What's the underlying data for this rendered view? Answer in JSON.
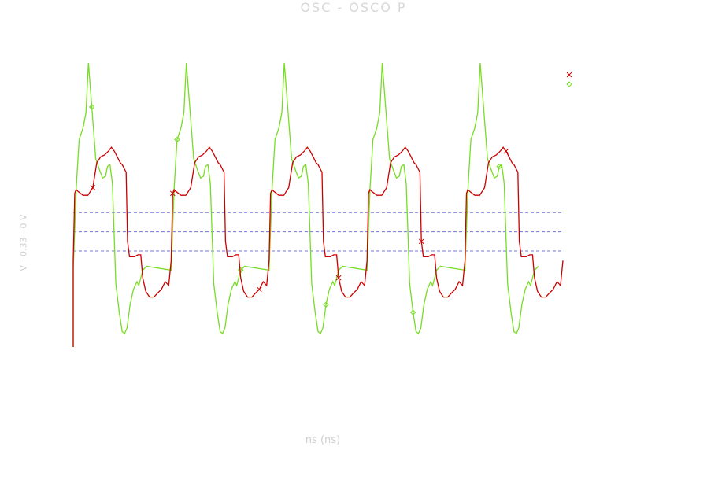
{
  "chart_data": {
    "type": "line",
    "title": "OSC - OSCO P",
    "xlabel": "ns (ns)",
    "ylabel": "V - 0.33 - 0 V",
    "grid": false,
    "legend_position": "top-right",
    "xlim": [
      0,
      100
    ],
    "ylim": [
      0,
      1
    ],
    "reference_lines": [
      0.5,
      0.6,
      0.7
    ],
    "series": [
      {
        "marker": "x",
        "color": "#cc0000",
        "period": 20,
        "x_start": 0,
        "x_end": 100,
        "start_value": 0.0,
        "pattern": [
          [
            0.0,
            0.45
          ],
          [
            0.3,
            0.8
          ],
          [
            0.6,
            0.82
          ],
          [
            1.0,
            0.81
          ],
          [
            2.0,
            0.79
          ],
          [
            3.0,
            0.79
          ],
          [
            4.0,
            0.83
          ],
          [
            4.8,
            0.96
          ],
          [
            5.6,
            0.99
          ],
          [
            6.4,
            1.0
          ],
          [
            7.2,
            1.02
          ],
          [
            7.8,
            1.04
          ],
          [
            8.4,
            1.02
          ],
          [
            9.0,
            0.99
          ],
          [
            9.6,
            0.96
          ],
          [
            10.0,
            0.95
          ],
          [
            10.8,
            0.91
          ],
          [
            11.1,
            0.55
          ],
          [
            11.5,
            0.47
          ],
          [
            12.5,
            0.47
          ],
          [
            13.2,
            0.48
          ],
          [
            13.8,
            0.48
          ],
          [
            14.2,
            0.36
          ],
          [
            14.8,
            0.29
          ],
          [
            15.6,
            0.26
          ],
          [
            16.5,
            0.26
          ],
          [
            17.2,
            0.28
          ],
          [
            18.0,
            0.3
          ],
          [
            18.8,
            0.34
          ],
          [
            19.5,
            0.32
          ],
          [
            20.0,
            0.45
          ]
        ]
      },
      {
        "marker": "o",
        "color": "#77dd22",
        "period": 20,
        "x_start": 0,
        "x_end": 100,
        "start_value": 0.0,
        "pattern": [
          [
            0.0,
            0.4
          ],
          [
            0.6,
            0.82
          ],
          [
            1.2,
            1.08
          ],
          [
            2.0,
            1.14
          ],
          [
            2.6,
            1.22
          ],
          [
            3.1,
            1.48
          ],
          [
            3.8,
            1.25
          ],
          [
            4.6,
            0.98
          ],
          [
            5.4,
            0.92
          ],
          [
            6.0,
            0.88
          ],
          [
            6.6,
            0.89
          ],
          [
            7.0,
            0.94
          ],
          [
            7.5,
            0.95
          ],
          [
            8.0,
            0.85
          ],
          [
            8.7,
            0.33
          ],
          [
            9.4,
            0.18
          ],
          [
            10.0,
            0.08
          ],
          [
            10.5,
            0.07
          ],
          [
            11.0,
            0.1
          ],
          [
            11.6,
            0.22
          ],
          [
            12.3,
            0.3
          ],
          [
            13.0,
            0.34
          ],
          [
            13.4,
            0.32
          ],
          [
            14.2,
            0.4
          ],
          [
            15.0,
            0.42
          ]
        ]
      }
    ],
    "legend": [
      {
        "marker": "x",
        "label": "",
        "color": "#cc0000"
      },
      {
        "marker": "o",
        "label": "",
        "color": "#77dd22"
      }
    ]
  }
}
